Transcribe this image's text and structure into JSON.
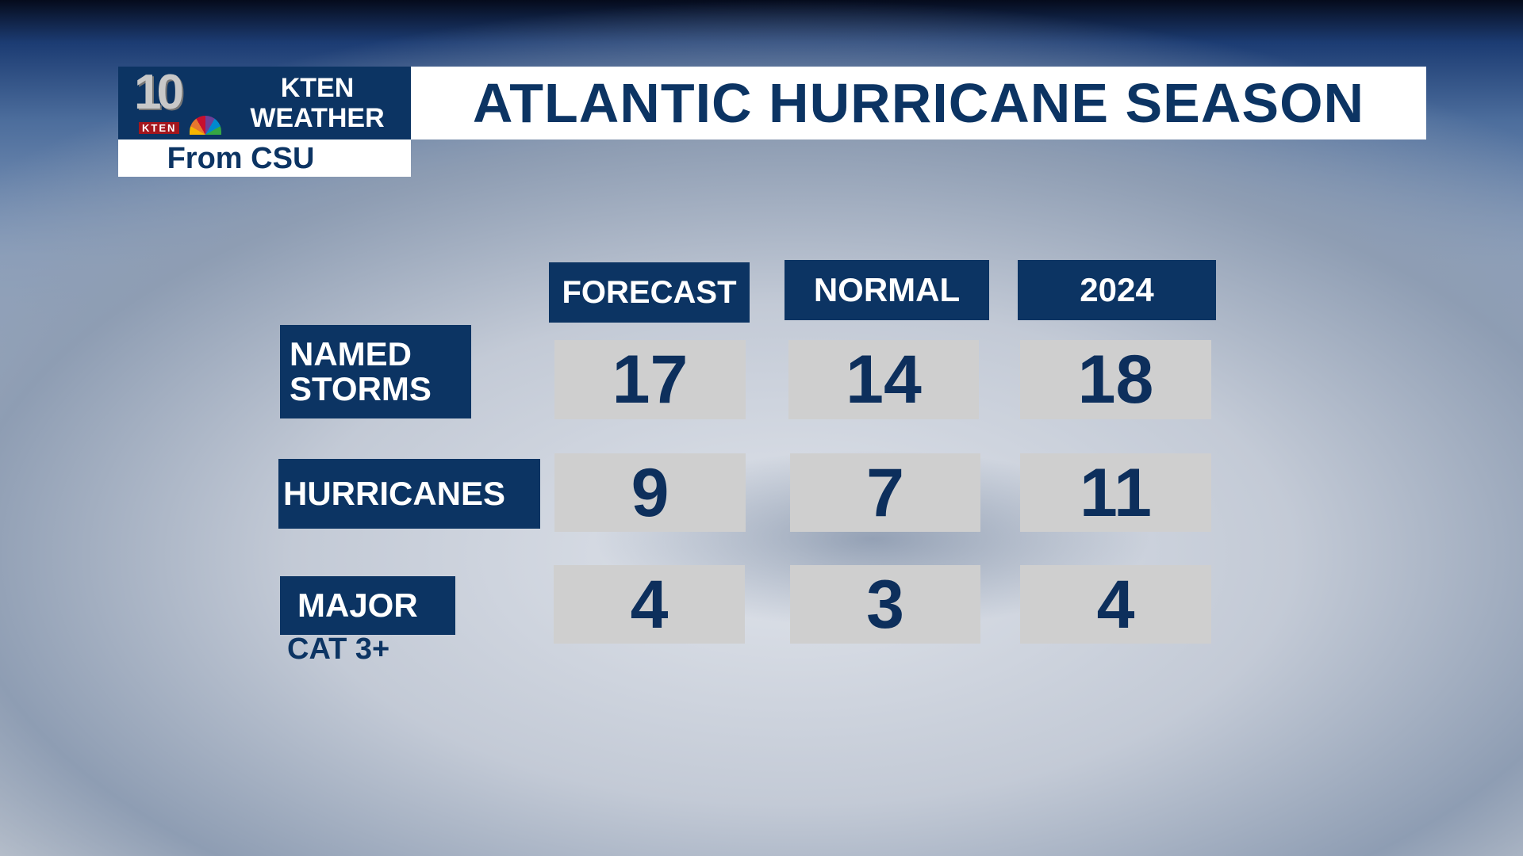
{
  "branding": {
    "logo_number": "10",
    "logo_call": "KTEN",
    "station": "KTEN",
    "weather": "WEATHER",
    "source": "From CSU"
  },
  "title": "ATLANTIC HURRICANE SEASON",
  "columns": [
    "FORECAST",
    "NORMAL",
    "2024"
  ],
  "rows": [
    {
      "label": "NAMED STORMS",
      "label_l1": "NAMED",
      "label_l2": "STORMS",
      "values": [
        "17",
        "14",
        "18"
      ]
    },
    {
      "label": "HURRICANES",
      "values": [
        "9",
        "7",
        "11"
      ]
    },
    {
      "label": "MAJOR",
      "sublabel": "CAT 3+",
      "values": [
        "4",
        "3",
        "4"
      ]
    }
  ],
  "colors": {
    "navy": "#0c3463",
    "value_box": "#cfcfcf",
    "value_text": "#0d2f5c"
  }
}
